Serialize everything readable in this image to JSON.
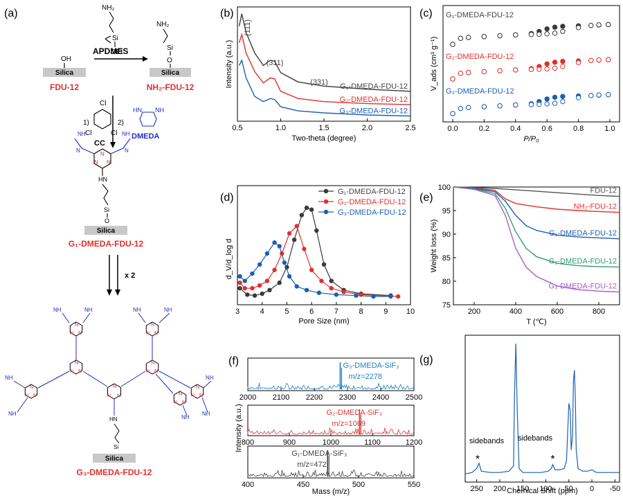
{
  "panel_labels": {
    "a": "(a)",
    "b": "(b)",
    "c": "(c)",
    "d": "(d)",
    "e": "(e)",
    "f": "(f)",
    "g": "(g)"
  },
  "scheme": {
    "silica": "Silica",
    "fdu12": "FDU-12",
    "nh2_fdu12": "NH₂-FDU-12",
    "apdmes": "APDMES",
    "oet": "OEt",
    "nh2": "NH₂",
    "oh": "OH",
    "si": "Si",
    "o": "O",
    "cc": "CC",
    "dmeda": "DMEDA",
    "step1": "1)",
    "step2": "2)",
    "cl": "Cl",
    "n": "N",
    "hn": "HN",
    "nh": "NH",
    "x2": "x 2",
    "g1": "G₁-DMEDA-FDU-12",
    "g3": "G₃-DMEDA-FDU-12"
  },
  "colors": {
    "g1": "#3a3a3a",
    "g2": "#e0302c",
    "g3": "#1a5fb4",
    "nh2": "#e0302c",
    "fdu": "#3a3a3a",
    "g2e": "#2e9e6e",
    "g3e": "#a45cc8",
    "red": "#e8262a",
    "blue": "#1c2fbf"
  },
  "chart_data": [
    {
      "id": "b",
      "type": "line",
      "xlabel": "Two-theta (degree)",
      "ylabel": "Intensity (a.u.)",
      "xlim": [
        0.5,
        2.5
      ],
      "xticks": [
        "0.5",
        "1.0",
        "1.5",
        "2.0",
        "2.5"
      ],
      "annotations": [
        "(111)",
        "(311)",
        "(331)"
      ],
      "series": [
        {
          "name": "G₁-DMEDA-FDU-12",
          "x": [
            0.52,
            0.55,
            0.6,
            0.7,
            0.8,
            0.88,
            0.93,
            1.0,
            1.2,
            1.5,
            2.0,
            2.5
          ],
          "y": [
            0.88,
            1.0,
            0.82,
            0.62,
            0.5,
            0.55,
            0.54,
            0.43,
            0.34,
            0.3,
            0.27,
            0.25
          ]
        },
        {
          "name": "G₂-DMEDA-FDU-12",
          "x": [
            0.52,
            0.55,
            0.6,
            0.7,
            0.8,
            0.88,
            0.93,
            1.0,
            1.2,
            1.5,
            2.0,
            2.5
          ],
          "y": [
            0.72,
            0.8,
            0.62,
            0.44,
            0.33,
            0.38,
            0.37,
            0.25,
            0.18,
            0.15,
            0.13,
            0.12
          ]
        },
        {
          "name": "G₃-DMEDA-FDU-12",
          "x": [
            0.52,
            0.55,
            0.6,
            0.7,
            0.8,
            0.88,
            0.93,
            1.0,
            1.2,
            1.5,
            2.0,
            2.5
          ],
          "y": [
            0.5,
            0.55,
            0.38,
            0.2,
            0.15,
            0.18,
            0.17,
            0.1,
            0.06,
            0.04,
            0.02,
            0.01
          ]
        }
      ]
    },
    {
      "id": "c",
      "type": "scatter",
      "xlabel": "P/P₀",
      "ylabel": "V_ads (cm³ g⁻¹)",
      "xlim": [
        0,
        1
      ],
      "xticks": [
        "0.0",
        "0.2",
        "0.4",
        "0.6",
        "0.8",
        "1.0"
      ],
      "series": [
        {
          "name": "G₁-DMEDA-FDU-12",
          "offset": 2,
          "adsorption_y": [
            0.0,
            0.28,
            0.32,
            0.36,
            0.4,
            0.44,
            0.5,
            0.6,
            0.72,
            0.8,
            0.84,
            0.86,
            0.88,
            0.9,
            0.92
          ],
          "desorption_y": [
            0.0,
            0.28,
            0.32,
            0.36,
            0.4,
            0.44,
            0.46,
            0.47,
            0.49,
            0.52,
            0.6,
            0.78,
            0.88,
            0.91,
            0.92
          ]
        },
        {
          "name": "G₂-DMEDA-FDU-12",
          "offset": 1,
          "adsorption_y": [
            0.0,
            0.26,
            0.3,
            0.34,
            0.38,
            0.42,
            0.48,
            0.58,
            0.7,
            0.78,
            0.82,
            0.84,
            0.86,
            0.88,
            0.9
          ],
          "desorption_y": [
            0.0,
            0.26,
            0.3,
            0.34,
            0.38,
            0.42,
            0.44,
            0.45,
            0.47,
            0.5,
            0.58,
            0.76,
            0.86,
            0.89,
            0.9
          ]
        },
        {
          "name": "G₃-DMEDA-FDU-12",
          "offset": 0,
          "adsorption_y": [
            0.0,
            0.24,
            0.28,
            0.32,
            0.36,
            0.4,
            0.46,
            0.56,
            0.68,
            0.76,
            0.8,
            0.82,
            0.84,
            0.86,
            0.88
          ],
          "desorption_y": [
            0.0,
            0.24,
            0.28,
            0.32,
            0.36,
            0.4,
            0.42,
            0.43,
            0.45,
            0.48,
            0.56,
            0.74,
            0.84,
            0.87,
            0.88
          ]
        }
      ],
      "x_points": [
        0.0,
        0.05,
        0.1,
        0.2,
        0.3,
        0.4,
        0.5,
        0.55,
        0.6,
        0.65,
        0.7,
        0.8,
        0.88,
        0.93,
        0.99
      ]
    },
    {
      "id": "d",
      "type": "line",
      "xlabel": "Pore Size (nm)",
      "ylabel": "d_V/d_log d",
      "xlim": [
        3,
        10
      ],
      "xticks": [
        "3",
        "4",
        "5",
        "6",
        "7",
        "8",
        "9",
        "10"
      ],
      "legend_loc": "top-right",
      "series": [
        {
          "name": "G₁-DMEDA-FDU-12",
          "x": [
            3.1,
            3.4,
            3.7,
            4.0,
            4.3,
            4.7,
            5.0,
            5.3,
            5.6,
            5.8,
            6.0,
            6.2,
            6.5,
            6.8,
            7.3,
            8.0,
            9.2
          ],
          "y": [
            0.12,
            0.05,
            0.04,
            0.06,
            0.1,
            0.18,
            0.35,
            0.65,
            0.92,
            1.0,
            0.98,
            0.75,
            0.38,
            0.2,
            0.1,
            0.06,
            0.04
          ]
        },
        {
          "name": "G₂-DMEDA-FDU-12",
          "x": [
            3.1,
            3.3,
            3.6,
            3.9,
            4.2,
            4.5,
            4.8,
            5.1,
            5.4,
            5.7,
            6.0,
            6.4,
            6.8,
            7.3,
            8.0,
            9.5
          ],
          "y": [
            0.18,
            0.12,
            0.12,
            0.15,
            0.2,
            0.32,
            0.5,
            0.72,
            0.8,
            0.55,
            0.32,
            0.2,
            0.12,
            0.08,
            0.05,
            0.03
          ]
        },
        {
          "name": "G₃-DMEDA-FDU-12",
          "x": [
            3.1,
            3.3,
            3.6,
            3.9,
            4.2,
            4.5,
            4.7,
            4.9,
            5.1,
            5.4,
            5.8,
            6.3,
            7.0,
            7.8,
            8.5,
            9.2
          ],
          "y": [
            0.25,
            0.2,
            0.28,
            0.38,
            0.5,
            0.62,
            0.58,
            0.4,
            0.25,
            0.14,
            0.1,
            0.07,
            0.05,
            0.04,
            0.03,
            0.03
          ]
        }
      ]
    },
    {
      "id": "e",
      "type": "line",
      "xlabel": "T (℃)",
      "ylabel": "Weight loss (%)",
      "xlim": [
        100,
        900
      ],
      "ylim": [
        75,
        100
      ],
      "xticks": [
        "200",
        "400",
        "600",
        "800"
      ],
      "yticks": [
        "75",
        "80",
        "85",
        "90",
        "95",
        "100"
      ],
      "series": [
        {
          "name": "FDU-12",
          "x": [
            100,
            200,
            300,
            400,
            500,
            600,
            700,
            800,
            900
          ],
          "y": [
            100,
            99.9,
            99.7,
            99.4,
            99.1,
            98.8,
            98.5,
            98.2,
            98.0
          ]
        },
        {
          "name": "NH₂-FDU-12",
          "x": [
            100,
            200,
            300,
            350,
            400,
            500,
            600,
            700,
            800,
            900
          ],
          "y": [
            100,
            99.8,
            99.3,
            97.5,
            96.5,
            95.8,
            95.3,
            95.0,
            94.8,
            94.6
          ]
        },
        {
          "name": "G₁-DMEDA-FDU-12",
          "x": [
            100,
            200,
            300,
            350,
            400,
            450,
            500,
            600,
            700,
            800,
            900
          ],
          "y": [
            100,
            99.7,
            99.0,
            97.0,
            94.0,
            91.8,
            90.8,
            89.8,
            89.4,
            89.2,
            89.0
          ]
        },
        {
          "name": "G₂-DMEDA-FDU-12",
          "x": [
            100,
            200,
            300,
            350,
            400,
            450,
            500,
            600,
            700,
            800,
            900
          ],
          "y": [
            100,
            99.6,
            98.6,
            95.5,
            90.5,
            87.0,
            85.2,
            83.8,
            83.3,
            83.1,
            83.0
          ]
        },
        {
          "name": "G₃-DMEDA-FDU-12",
          "x": [
            100,
            200,
            300,
            350,
            400,
            450,
            500,
            600,
            650,
            700,
            800,
            900
          ],
          "y": [
            100,
            99.5,
            98.2,
            94.0,
            87.0,
            83.0,
            81.0,
            79.0,
            78.6,
            78.2,
            77.9,
            77.7
          ]
        }
      ]
    },
    {
      "id": "f",
      "type": "bar",
      "xlabel": "Mass (m/z)",
      "ylabel": "Intensity (a.u.)",
      "panels": [
        {
          "name": "G₃-DMEDA-SiF₃",
          "label": "m/z=2278",
          "xlim": [
            2000,
            2500
          ],
          "xticks": [
            "2000",
            "2100",
            "2200",
            "2300",
            "2400",
            "2500"
          ],
          "peak": 2278
        },
        {
          "name": "G₂-DMEDA-SiF₃",
          "label": "m/z=1069",
          "xlim": [
            800,
            1200
          ],
          "xticks": [
            "800",
            "900",
            "1000",
            "1100",
            "1200"
          ],
          "peak": 1069
        },
        {
          "name": "G₁-DMEDA-SiF₃",
          "label": "m/z=472",
          "xlim": [
            400,
            550
          ],
          "xticks": [
            "400",
            "450",
            "500",
            "550"
          ],
          "peak": 472
        }
      ]
    },
    {
      "id": "g",
      "type": "line",
      "xlabel": "Chemical Shift (ppm)",
      "xlim": [
        275,
        -60
      ],
      "xticks": [
        "250",
        "200",
        "150",
        "100",
        "50",
        "0",
        "-50"
      ],
      "annotations": [
        "sidebands",
        "sidebands",
        "*",
        "*"
      ],
      "x": [
        275,
        260,
        250,
        245,
        240,
        220,
        200,
        180,
        170,
        168,
        165,
        162,
        158,
        150,
        130,
        110,
        95,
        88,
        85,
        80,
        70,
        60,
        55,
        50,
        47,
        45,
        42,
        40,
        38,
        36,
        34,
        30,
        20,
        10,
        0,
        -10,
        -30,
        -50,
        -60
      ],
      "y": [
        0.02,
        0.03,
        0.06,
        0.1,
        0.04,
        0.03,
        0.03,
        0.04,
        0.08,
        0.6,
        1.0,
        0.5,
        0.06,
        0.03,
        0.03,
        0.03,
        0.04,
        0.06,
        0.09,
        0.05,
        0.05,
        0.06,
        0.12,
        0.55,
        0.5,
        0.2,
        0.3,
        0.72,
        0.8,
        0.6,
        0.2,
        0.06,
        0.04,
        0.04,
        0.05,
        0.03,
        0.03,
        0.03,
        0.03
      ]
    }
  ]
}
